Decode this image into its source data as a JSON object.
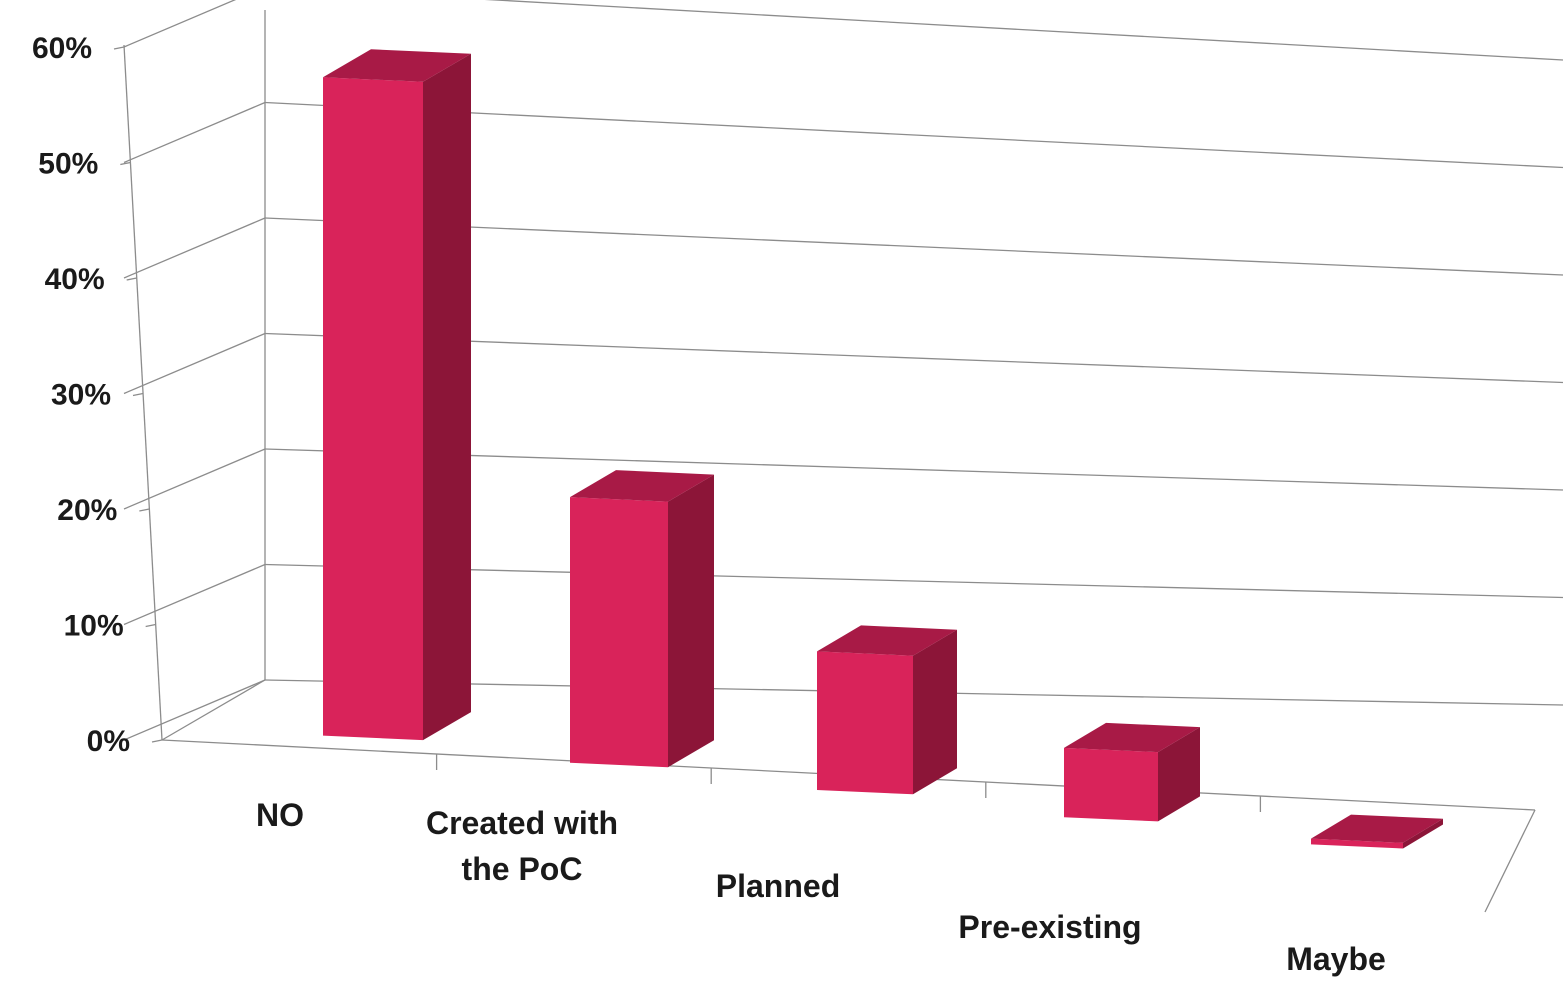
{
  "chart_data": {
    "type": "bar",
    "style": "3d-perspective",
    "categories": [
      "NO",
      "Created with the PoC",
      "Planned",
      "Pre-existing",
      "Maybe"
    ],
    "category_label_lines": [
      [
        "NO"
      ],
      [
        "Created with",
        "the PoC"
      ],
      [
        "Planned"
      ],
      [
        "Pre-existing"
      ],
      [
        "Maybe"
      ]
    ],
    "values": [
      57,
      23,
      12,
      6,
      0.5
    ],
    "y_ticks": [
      "0%",
      "10%",
      "20%",
      "30%",
      "40%",
      "50%",
      "60%"
    ],
    "ylim": [
      0,
      60
    ],
    "grid": true,
    "legend": "none",
    "title": "",
    "xlabel": "",
    "ylabel": "",
    "colors": {
      "bar_front": "#d9235a",
      "bar_side": "#8c1538",
      "bar_top": "#a81a46",
      "grid": "#8c8c8c",
      "text": "#1a1a1a"
    }
  }
}
